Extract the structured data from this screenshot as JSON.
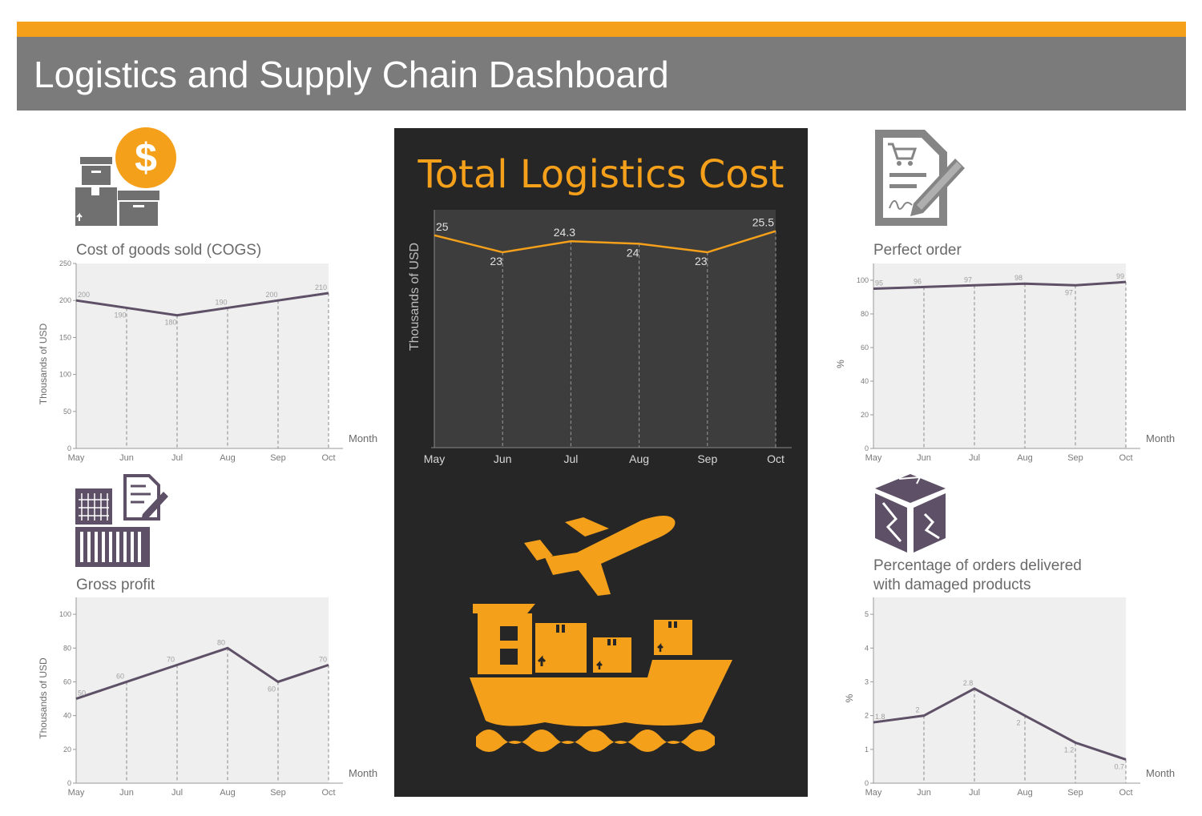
{
  "header": {
    "title": "Logistics and Supply Chain Dashboard"
  },
  "colors": {
    "accent": "#f5a01a",
    "header": "#7b7b7b",
    "line": "#5e5066",
    "icon_gray": "#707070",
    "icon_purple": "#5e5066",
    "dark_panel": "#262626"
  },
  "icons": [
    "boxes-dollar-icon",
    "order-form-icon",
    "container-document-icon",
    "damaged-box-icon",
    "airplane-icon",
    "cargo-ship-icon"
  ],
  "chart_data": [
    {
      "id": "cogs",
      "type": "line",
      "title": "Cost of goods sold (COGS)",
      "xlabel": "Month",
      "ylabel": "Thousands of USD",
      "categories": [
        "May",
        "Jun",
        "Jul",
        "Aug",
        "Sep",
        "Oct"
      ],
      "values": [
        200,
        190,
        180,
        190,
        200,
        210
      ],
      "value_labels": [
        "200",
        "190",
        "180",
        "190",
        "200",
        "210"
      ],
      "ylim": [
        0,
        250
      ],
      "yticks": [
        0,
        50,
        100,
        150,
        200,
        250
      ],
      "ytick_labels": [
        "0",
        "50",
        "100",
        "150",
        "200",
        "250"
      ]
    },
    {
      "id": "total",
      "type": "line",
      "title": "Total Logistics Cost",
      "xlabel": "",
      "ylabel": "Thousands of USD",
      "categories": [
        "May",
        "Jun",
        "Jul",
        "Aug",
        "Sep",
        "Oct"
      ],
      "values": [
        25,
        23,
        24.3,
        24,
        23,
        25.5
      ],
      "value_labels": [
        "25",
        "23",
        "24.3",
        "24",
        "23",
        "25.5"
      ],
      "ylim": [
        0,
        28
      ]
    },
    {
      "id": "perfect",
      "type": "line",
      "title": "Perfect order",
      "xlabel": "Month",
      "ylabel": "%",
      "categories": [
        "May",
        "Jun",
        "Jul",
        "Aug",
        "Sep",
        "Oct"
      ],
      "values": [
        95,
        96,
        97,
        98,
        97,
        99
      ],
      "value_labels": [
        "95",
        "96",
        "97",
        "98",
        "97",
        "99"
      ],
      "ylim": [
        0,
        110
      ],
      "yticks": [
        0,
        20,
        40,
        60,
        80,
        100
      ],
      "ytick_labels": [
        "0",
        "20",
        "40",
        "60",
        "80",
        "100"
      ]
    },
    {
      "id": "gross",
      "type": "line",
      "title": "Gross profit",
      "xlabel": "Month",
      "ylabel": "Thousands of USD",
      "categories": [
        "May",
        "Jun",
        "Jul",
        "Aug",
        "Sep",
        "Oct"
      ],
      "values": [
        50,
        60,
        70,
        80,
        60,
        70
      ],
      "value_labels": [
        "50",
        "60",
        "70",
        "80",
        "60",
        "70"
      ],
      "ylim": [
        0,
        110
      ],
      "yticks": [
        0,
        20,
        40,
        60,
        80,
        100
      ],
      "ytick_labels": [
        "0",
        "20",
        "40",
        "60",
        "80",
        "100"
      ]
    },
    {
      "id": "damaged",
      "type": "line",
      "title": [
        "Percentage of orders delivered",
        "with damaged products"
      ],
      "xlabel": "Month",
      "ylabel": "%",
      "categories": [
        "May",
        "Jun",
        "Jul",
        "Aug",
        "Sep",
        "Oct"
      ],
      "values": [
        1.8,
        2,
        2.8,
        2,
        1.2,
        0.7
      ],
      "value_labels": [
        "1.8",
        "2",
        "2.8",
        "2",
        "1.2",
        "0.7"
      ],
      "ylim": [
        0,
        5.5
      ],
      "yticks": [
        0,
        1,
        2,
        3,
        4,
        5
      ],
      "ytick_labels": [
        "0",
        "1",
        "2",
        "3",
        "4",
        "5"
      ]
    }
  ]
}
